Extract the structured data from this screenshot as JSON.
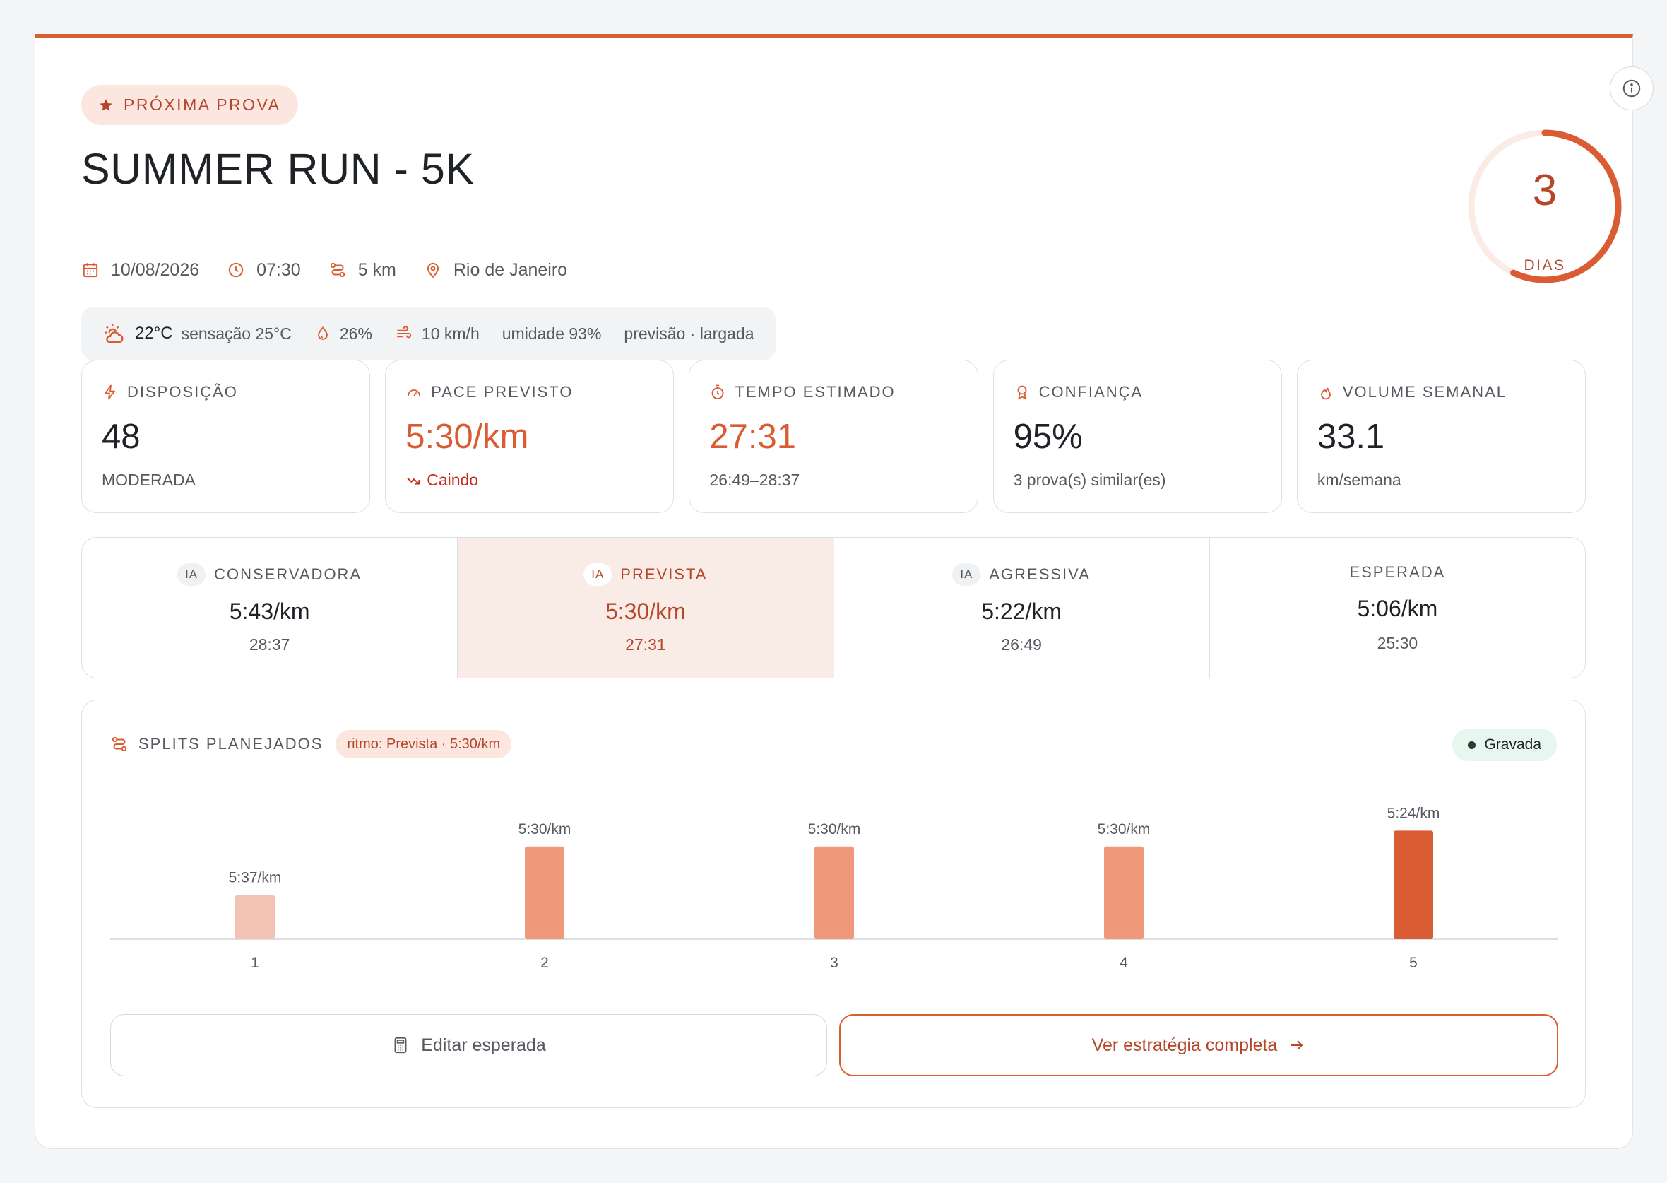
{
  "header": {
    "badge": "PRÓXIMA PROVA",
    "title": "SUMMER RUN - 5K",
    "date": "10/08/2026",
    "time": "07:30",
    "distance": "5 km",
    "location": "Rio de Janeiro"
  },
  "weather": {
    "temperature": "22°C",
    "feels_like": "sensação 25°C",
    "rain": "26%",
    "wind": "10 km/h",
    "humidity": "umidade 93%",
    "note": "previsão · largada"
  },
  "countdown": {
    "value": "3",
    "label": "DIAS",
    "progress": 0.57
  },
  "stats": [
    {
      "label": "DISPOSIÇÃO",
      "value": "48",
      "sub": "MODERADA"
    },
    {
      "label": "PACE PREVISTO",
      "value": "5:30/km",
      "sub": "Caindo"
    },
    {
      "label": "TEMPO ESTIMADO",
      "value": "27:31",
      "sub": "26:49–28:37"
    },
    {
      "label": "CONFIANÇA",
      "value": "95%",
      "sub": "3 prova(s) similar(es)"
    },
    {
      "label": "VOLUME SEMANAL",
      "value": "33.1",
      "sub": "km/semana"
    }
  ],
  "scenarios": [
    {
      "tag": "IA",
      "label": "CONSERVADORA",
      "pace": "5:43/km",
      "time": "28:37"
    },
    {
      "tag": "IA",
      "label": "PREVISTA",
      "pace": "5:30/km",
      "time": "27:31"
    },
    {
      "tag": "IA",
      "label": "AGRESSIVA",
      "pace": "5:22/km",
      "time": "26:49"
    },
    {
      "label": "ESPERADA",
      "pace": "5:06/km",
      "time": "25:30"
    }
  ],
  "splits": {
    "title": "SPLITS PLANEJADOS",
    "pill": "ritmo: Prevista · 5:30/km",
    "status": "Gravada"
  },
  "chart_data": {
    "type": "bar",
    "categories": [
      "1",
      "2",
      "3",
      "4",
      "5"
    ],
    "labels": [
      "5:37/km",
      "5:30/km",
      "5:30/km",
      "5:30/km",
      "5:24/km"
    ],
    "values": [
      0.39,
      0.82,
      0.82,
      0.82,
      0.96
    ],
    "colors": [
      "#f2c3b3",
      "#ef997a",
      "#ef997a",
      "#ef997a",
      "#d95c33"
    ]
  },
  "buttons": {
    "edit": "Editar esperada",
    "strategy": "Ver estratégia completa"
  },
  "colors": {
    "accent": "#d95c33",
    "accent_dark": "#b5462a",
    "down": "#c62a1a"
  }
}
